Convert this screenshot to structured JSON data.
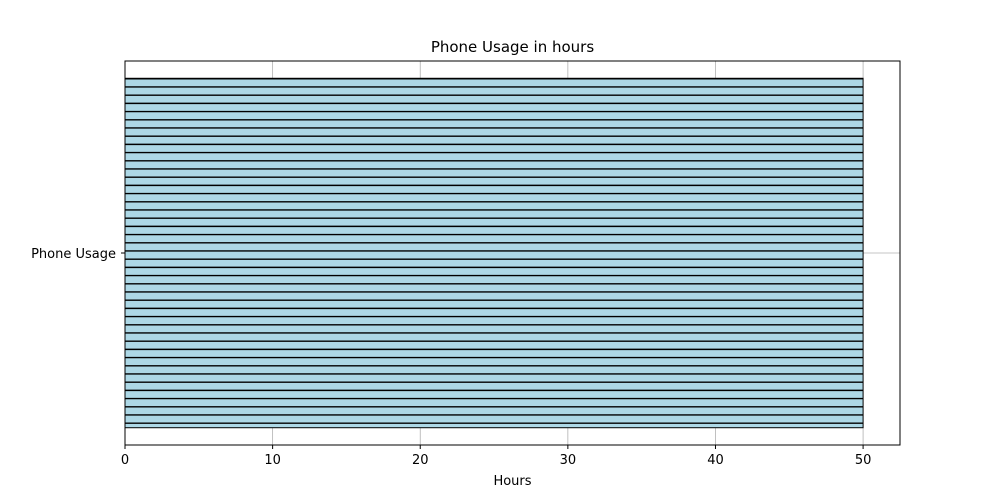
{
  "chart_data": {
    "type": "bar",
    "orientation": "horizontal",
    "title": "Phone Usage in hours",
    "xlabel": "Hours",
    "ylabel": "",
    "categories": [
      "Phone Usage"
    ],
    "values": [
      50
    ],
    "xlim": [
      0,
      52.5
    ],
    "xticks": [
      "0",
      "10",
      "20",
      "30",
      "40",
      "50"
    ],
    "grid": true,
    "legend": "none",
    "bar_color": "#add8e6",
    "edge_color": "#000000",
    "hatch": "horizontal-lines"
  }
}
